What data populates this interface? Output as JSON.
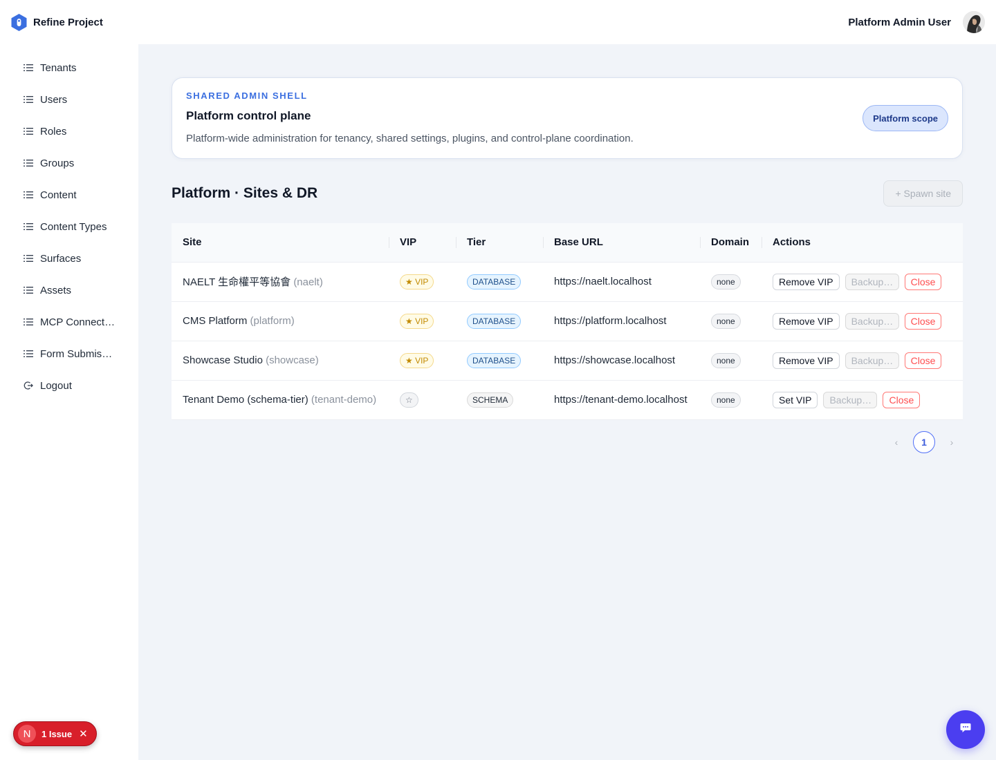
{
  "header": {
    "brand_name": "Refine Project",
    "user_name": "Platform Admin User"
  },
  "sidebar": {
    "items": [
      {
        "label": "Tenants",
        "icon": "list-icon"
      },
      {
        "label": "Users",
        "icon": "list-icon"
      },
      {
        "label": "Roles",
        "icon": "list-icon"
      },
      {
        "label": "Groups",
        "icon": "list-icon"
      },
      {
        "label": "Content",
        "icon": "list-icon"
      },
      {
        "label": "Content Types",
        "icon": "list-icon"
      },
      {
        "label": "Surfaces",
        "icon": "list-icon"
      },
      {
        "label": "Assets",
        "icon": "list-icon"
      },
      {
        "label": "MCP Connections",
        "icon": "list-icon"
      },
      {
        "label": "Form Submissi…",
        "icon": "list-icon"
      },
      {
        "label": "Logout",
        "icon": "logout-icon"
      }
    ]
  },
  "banner": {
    "eyebrow": "SHARED ADMIN SHELL",
    "title": "Platform control plane",
    "description": "Platform-wide administration for tenancy, shared settings, plugins, and control-plane coordination.",
    "scope_label": "Platform scope"
  },
  "section": {
    "title": "Platform · Sites & DR",
    "spawn_label": "+ Spawn site"
  },
  "table": {
    "columns": [
      "Site",
      "VIP",
      "Tier",
      "Base URL",
      "Domain",
      "Actions"
    ],
    "rows": [
      {
        "site": "NAELT 生命權平等協會",
        "slug": "(naelt)",
        "vip": "★ VIP",
        "is_vip": true,
        "tier": "DATABASE",
        "url": "https://naelt.localhost",
        "domain": "none",
        "vip_action": "Remove VIP",
        "backup": "Backup…",
        "close": "Close"
      },
      {
        "site": "CMS Platform",
        "slug": "(platform)",
        "vip": "★ VIP",
        "is_vip": true,
        "tier": "DATABASE",
        "url": "https://platform.localhost",
        "domain": "none",
        "vip_action": "Remove VIP",
        "backup": "Backup…",
        "close": "Close"
      },
      {
        "site": "Showcase Studio",
        "slug": "(showcase)",
        "vip": "★ VIP",
        "is_vip": true,
        "tier": "DATABASE",
        "url": "https://showcase.localhost",
        "domain": "none",
        "vip_action": "Remove VIP",
        "backup": "Backup…",
        "close": "Close"
      },
      {
        "site": "Tenant Demo (schema-tier)",
        "slug": "(tenant-demo)",
        "vip": "☆",
        "is_vip": false,
        "tier": "SCHEMA",
        "url": "https://tenant-demo.localhost",
        "domain": "none",
        "vip_action": "Set VIP",
        "backup": "Backup…",
        "close": "Close"
      }
    ]
  },
  "pagination": {
    "prev": "‹",
    "current_page": "1",
    "next": "›"
  },
  "issues": {
    "badge_letter": "N",
    "label": "1 Issue",
    "close": "✕"
  },
  "colors": {
    "accent": "#3b6fe0",
    "chat": "#4b3ef0",
    "danger": "#ff4d4f",
    "issue_red": "#d81f2a"
  }
}
